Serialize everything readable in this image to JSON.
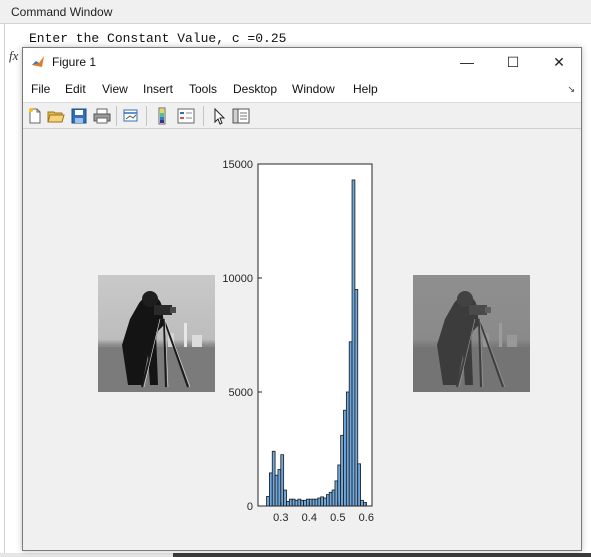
{
  "command_window": {
    "title": "Command Window",
    "line": "Enter the Constant Value, c =0.25",
    "prompt_symbol": "fx"
  },
  "figure": {
    "title": "Figure 1",
    "menu": [
      "File",
      "Edit",
      "View",
      "Insert",
      "Tools",
      "Desktop",
      "Window",
      "Help"
    ],
    "toolbar_icons": [
      "new-figure-icon",
      "open-file-icon",
      "save-icon",
      "print-icon",
      "link-plot-icon",
      "colorbar-icon",
      "legend-icon",
      "pointer-icon",
      "property-editor-icon"
    ],
    "window_controls": {
      "minimize": "—",
      "maximize": "☐",
      "close": "✕"
    }
  },
  "images": {
    "left_caption": "",
    "right_caption": ""
  },
  "chart_data": {
    "type": "bar",
    "title": "",
    "xlabel": "",
    "ylabel": "",
    "xlim": [
      0.22,
      0.62
    ],
    "ylim": [
      0,
      15000
    ],
    "x_ticks": [
      "0.3",
      "0.4",
      "0.5",
      "0.6"
    ],
    "x_tick_values": [
      0.3,
      0.4,
      0.5,
      0.6
    ],
    "y_ticks": [
      "0",
      "5000",
      "10000",
      "15000"
    ],
    "y_tick_values": [
      0,
      5000,
      10000,
      15000
    ],
    "bar_color": "#6fa8dc",
    "bins": [
      {
        "x": 0.255,
        "y": 420
      },
      {
        "x": 0.265,
        "y": 1450
      },
      {
        "x": 0.275,
        "y": 2400
      },
      {
        "x": 0.285,
        "y": 1350
      },
      {
        "x": 0.295,
        "y": 1600
      },
      {
        "x": 0.305,
        "y": 2250
      },
      {
        "x": 0.315,
        "y": 700
      },
      {
        "x": 0.325,
        "y": 200
      },
      {
        "x": 0.335,
        "y": 300
      },
      {
        "x": 0.345,
        "y": 300
      },
      {
        "x": 0.355,
        "y": 250
      },
      {
        "x": 0.365,
        "y": 300
      },
      {
        "x": 0.375,
        "y": 250
      },
      {
        "x": 0.385,
        "y": 250
      },
      {
        "x": 0.395,
        "y": 300
      },
      {
        "x": 0.405,
        "y": 300
      },
      {
        "x": 0.415,
        "y": 300
      },
      {
        "x": 0.425,
        "y": 300
      },
      {
        "x": 0.435,
        "y": 350
      },
      {
        "x": 0.445,
        "y": 400
      },
      {
        "x": 0.455,
        "y": 350
      },
      {
        "x": 0.465,
        "y": 500
      },
      {
        "x": 0.475,
        "y": 600
      },
      {
        "x": 0.485,
        "y": 700
      },
      {
        "x": 0.495,
        "y": 1100
      },
      {
        "x": 0.505,
        "y": 1800
      },
      {
        "x": 0.515,
        "y": 3100
      },
      {
        "x": 0.525,
        "y": 4200
      },
      {
        "x": 0.535,
        "y": 5000
      },
      {
        "x": 0.545,
        "y": 7200
      },
      {
        "x": 0.555,
        "y": 14300
      },
      {
        "x": 0.565,
        "y": 9500
      },
      {
        "x": 0.575,
        "y": 1850
      },
      {
        "x": 0.585,
        "y": 250
      },
      {
        "x": 0.595,
        "y": 150
      }
    ]
  }
}
